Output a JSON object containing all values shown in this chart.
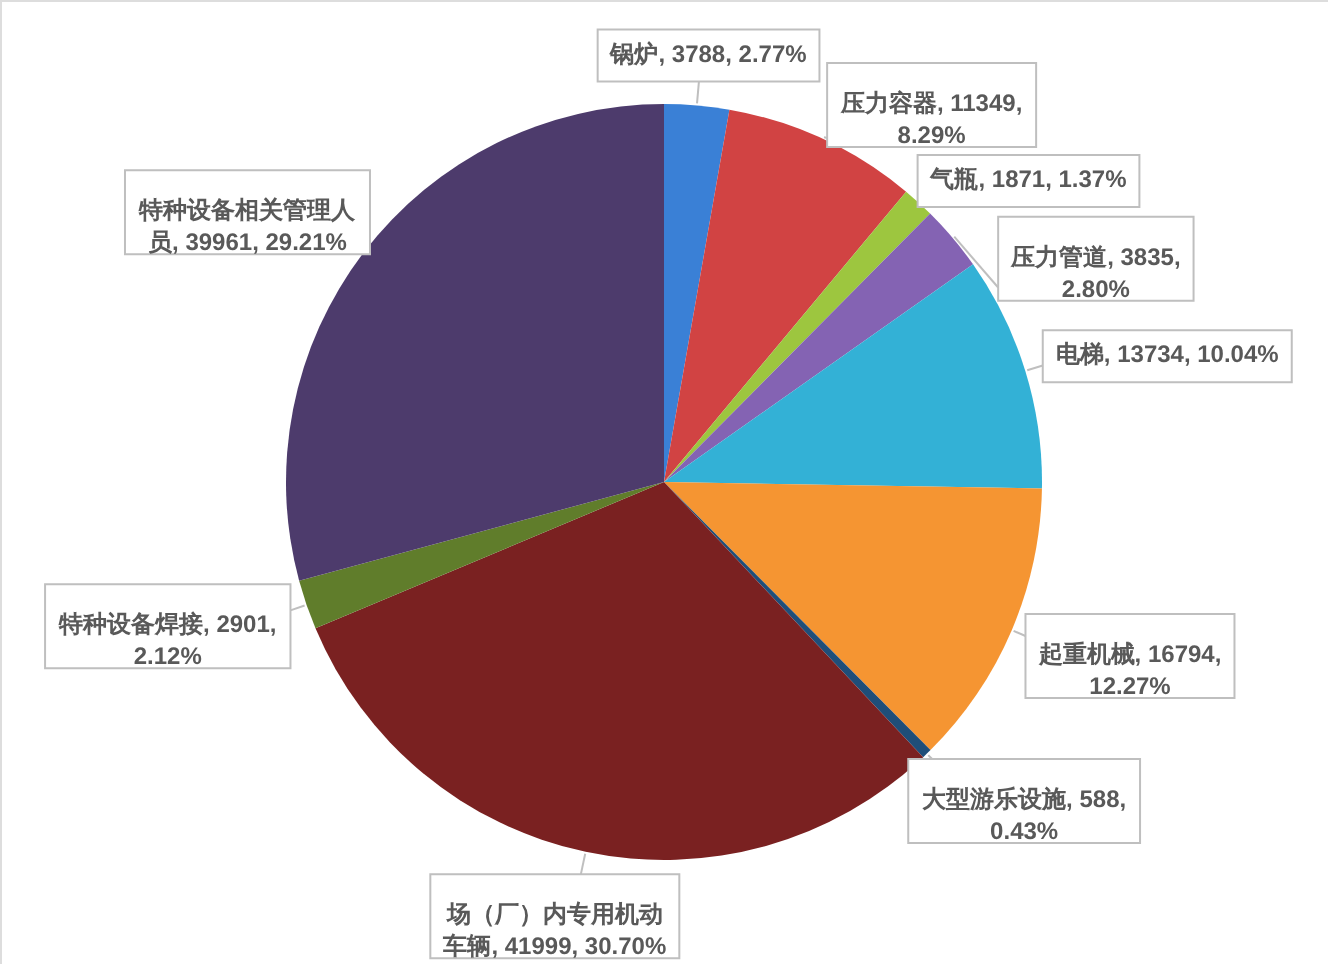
{
  "chart_data": {
    "type": "pie",
    "categories": [
      "锅炉",
      "压力容器",
      "气瓶",
      "压力管道",
      "电梯",
      "起重机械",
      "大型游乐设施",
      "场（厂）内专用机动车辆",
      "特种设备焊接",
      "特种设备相关管理人员"
    ],
    "values": [
      3788,
      11349,
      1871,
      3835,
      13734,
      16794,
      588,
      41999,
      2901,
      39961
    ],
    "value_labels": [
      "3788, 2.77%",
      "11349, 8.29%",
      "1871, 1.37%",
      "3835, 2.80%",
      "13734, 10.04%",
      "16794, 12.27%",
      "588, 0.43%",
      "41999, 30.70%",
      "2901, 2.12%",
      "39961, 29.21%"
    ],
    "colors": [
      "#3a80d6",
      "#d14343",
      "#9dc63f",
      "#8463b3",
      "#33b1d6",
      "#f59532",
      "#1f4e79",
      "#7a2121",
      "#607d2b",
      "#4d3b6c"
    ]
  }
}
